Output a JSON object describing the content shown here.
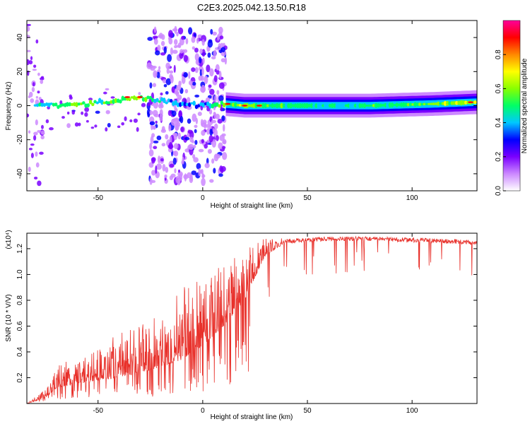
{
  "title": "C2E3.2025.042.13.50.R18",
  "chart_data": [
    {
      "type": "heatmap",
      "xlabel": "Height of straight line (km)",
      "ylabel": "Frequency (Hz)",
      "xlim": [
        -84,
        131
      ],
      "ylim": [
        -50,
        50
      ],
      "xticks": [
        -50,
        0,
        50,
        100
      ],
      "yticks": [
        -40,
        -20,
        0,
        20,
        40
      ],
      "colorbar": {
        "label": "Normalized spectral amplitude",
        "range": [
          0.0,
          1.0
        ],
        "ticks": [
          0.0,
          0.2,
          0.4,
          0.6,
          0.8
        ],
        "colors": [
          "#ffffff",
          "#cc88ff",
          "#7a00ff",
          "#0000ff",
          "#00c8ff",
          "#00ff66",
          "#88ff00",
          "#ffff00",
          "#ff8800",
          "#ff0000",
          "#ff0099"
        ]
      },
      "ridge": {
        "x": [
          -80,
          -70,
          -60,
          -50,
          -40,
          -30,
          -20,
          -10,
          0,
          10,
          20,
          50,
          80,
          110,
          130
        ],
        "frequency": [
          1,
          0,
          0,
          2,
          3,
          5,
          3,
          1,
          0,
          1,
          0,
          0,
          0,
          1,
          2
        ],
        "amplitude": [
          0.4,
          0.5,
          0.55,
          0.5,
          0.55,
          0.6,
          0.4,
          0.35,
          0.35,
          0.6,
          0.6,
          0.45,
          0.5,
          0.55,
          0.65
        ]
      },
      "scatter_region_km": [
        -26,
        11
      ],
      "scatter_frequency_range": [
        -45,
        45
      ],
      "continuous_region_km": [
        11,
        131
      ]
    },
    {
      "type": "line",
      "xlabel": "Height of straight line (km)",
      "ylabel": "SNR (10 * V/V)",
      "y_multiplier": "(x10⁴)",
      "xlim": [
        -84,
        131
      ],
      "ylim": [
        0,
        13200
      ],
      "xticks": [
        -50,
        0,
        50,
        100
      ],
      "yticks": [
        2000,
        4000,
        6000,
        8000,
        10000,
        12000
      ],
      "ytick_labels": [
        "0.2",
        "0.4",
        "0.6",
        "0.8",
        "1.0",
        "1.2"
      ],
      "color": "#e8302a",
      "envelope": {
        "x": [
          -84,
          -75,
          -70,
          -60,
          -50,
          -40,
          -30,
          -20,
          -10,
          0,
          10,
          20,
          25,
          30,
          40,
          50,
          60,
          80,
          100,
          120,
          131
        ],
        "baseline": [
          0,
          400,
          1200,
          1500,
          1800,
          2000,
          2400,
          2800,
          3400,
          4500,
          6000,
          8000,
          9800,
          11500,
          12500,
          12600,
          12700,
          12700,
          12600,
          12500,
          12400
        ],
        "peak": [
          0,
          1200,
          3000,
          3500,
          4500,
          5500,
          6000,
          7000,
          9000,
          10000,
          11000,
          12000,
          12600,
          12800,
          12800,
          12900,
          12900,
          12900,
          12800,
          12700,
          12600
        ]
      }
    }
  ]
}
